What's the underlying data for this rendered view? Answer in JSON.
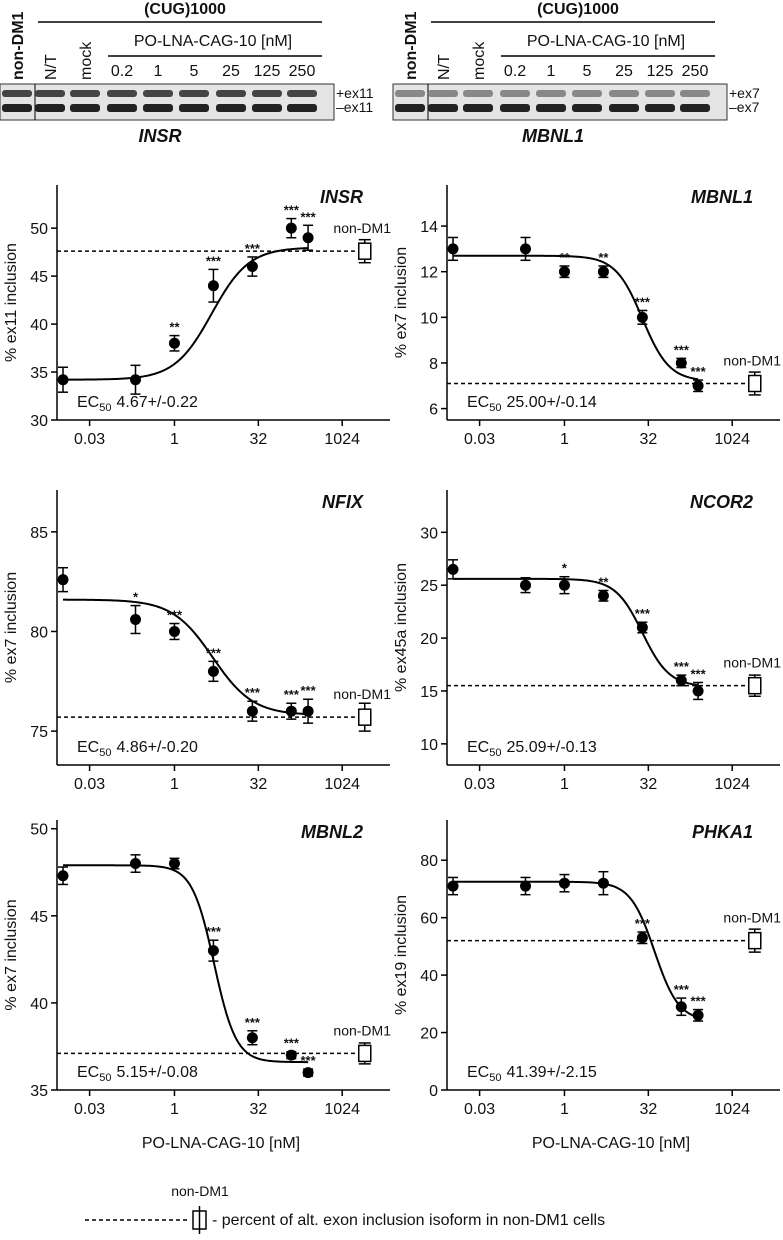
{
  "gels": [
    {
      "control": "non-DM1",
      "group": "(CUG)1000",
      "lanes": [
        "N/T",
        "mock"
      ],
      "treatment": "PO-LNA-CAG-10 [nM]",
      "doses": [
        "0.2",
        "1",
        "5",
        "25",
        "125",
        "250"
      ],
      "bands": [
        "+ex11",
        "–ex11"
      ],
      "gene": "INSR"
    },
    {
      "control": "non-DM1",
      "group": "(CUG)1000",
      "lanes": [
        "N/T",
        "mock"
      ],
      "treatment": "PO-LNA-CAG-10 [nM]",
      "doses": [
        "0.2",
        "1",
        "5",
        "25",
        "125",
        "250"
      ],
      "bands": [
        "+ex7",
        "–ex7"
      ],
      "gene": "MBNL1"
    }
  ],
  "chart_data": [
    {
      "type": "scatter",
      "title": "INSR",
      "ylabel": "% ex11 inclusion",
      "xscale": "log2",
      "xlim": [
        0.0078,
        6000
      ],
      "ylim": [
        30,
        54.5
      ],
      "xticks": [
        0.03,
        1,
        32,
        1024
      ],
      "yticks": [
        30,
        35,
        40,
        45,
        50
      ],
      "x": [
        0.01,
        0.2,
        1,
        5,
        25,
        125,
        250
      ],
      "values": [
        34.2,
        34.2,
        38,
        44,
        46,
        50,
        49
      ],
      "errors": [
        1.3,
        1.5,
        0.8,
        1.7,
        1,
        1,
        1.3
      ],
      "significance": [
        null,
        null,
        "**",
        "***",
        "***",
        "***",
        "***"
      ],
      "reference": {
        "label": "non-DM1",
        "x": 2600,
        "value": 47.6,
        "error": 1.2
      },
      "fit": {
        "bottom": 34.2,
        "top": 48,
        "ec50": 4.67,
        "hill": 1.3
      },
      "ec50_label": "EC",
      "ec50_sub": "50",
      "ec50_text": "4.67+/-0.22"
    },
    {
      "type": "scatter",
      "title": "MBNL1",
      "ylabel": "% ex7 inclusion",
      "xscale": "log2",
      "xlim": [
        0.0078,
        6000
      ],
      "ylim": [
        5.5,
        15.8
      ],
      "xticks": [
        0.03,
        1,
        32,
        1024
      ],
      "yticks": [
        6,
        8,
        10,
        12,
        14
      ],
      "x": [
        0.01,
        0.2,
        1,
        5,
        25,
        125,
        250
      ],
      "values": [
        13,
        13,
        12,
        12,
        10,
        8,
        7
      ],
      "errors": [
        0.5,
        0.5,
        0.25,
        0.25,
        0.3,
        0.2,
        0.25
      ],
      "significance": [
        null,
        null,
        "**",
        "**",
        "***",
        "***",
        "***"
      ],
      "reference": {
        "label": "non-DM1",
        "x": 2600,
        "value": 7.1,
        "error": 0.5
      },
      "fit": {
        "bottom": 7.2,
        "top": 12.7,
        "ec50": 25,
        "hill": -1.8
      },
      "ec50_label": "EC",
      "ec50_sub": "50",
      "ec50_text": "25.00+/-0.14"
    },
    {
      "type": "scatter",
      "title": "NFIX",
      "ylabel": "% ex7 inclusion",
      "xscale": "log2",
      "xlim": [
        0.0078,
        6000
      ],
      "ylim": [
        73.3,
        87.1
      ],
      "xticks": [
        0.03,
        1,
        32,
        1024
      ],
      "yticks": [
        75,
        80,
        85
      ],
      "x": [
        0.01,
        0.2,
        1,
        5,
        25,
        125,
        250
      ],
      "values": [
        82.6,
        80.6,
        80,
        78,
        76,
        76,
        76
      ],
      "errors": [
        0.6,
        0.7,
        0.4,
        0.5,
        0.5,
        0.4,
        0.6
      ],
      "significance": [
        null,
        "*",
        "***",
        "***",
        "***",
        "***",
        "***"
      ],
      "reference": {
        "label": "non-DM1",
        "x": 2600,
        "value": 75.7,
        "error": 0.7
      },
      "fit": {
        "bottom": 75.8,
        "top": 81.6,
        "ec50": 4.86,
        "hill": -1.2
      },
      "ec50_label": "EC",
      "ec50_sub": "50",
      "ec50_text": "4.86+/-0.20"
    },
    {
      "type": "scatter",
      "title": "NCOR2",
      "ylabel": "% ex45a inclusion",
      "xscale": "log2",
      "xlim": [
        0.0078,
        6000
      ],
      "ylim": [
        8,
        34
      ],
      "xticks": [
        0.03,
        1,
        32,
        1024
      ],
      "yticks": [
        10,
        15,
        20,
        25,
        30
      ],
      "x": [
        0.01,
        0.2,
        1,
        5,
        25,
        125,
        250
      ],
      "values": [
        26.5,
        25,
        25,
        24,
        21,
        16,
        15
      ],
      "errors": [
        0.9,
        0.7,
        0.8,
        0.5,
        0.5,
        0.5,
        0.8
      ],
      "significance": [
        null,
        null,
        "*",
        "**",
        "***",
        "***",
        "***"
      ],
      "reference": {
        "label": "non-DM1",
        "x": 2600,
        "value": 15.5,
        "error": 1
      },
      "fit": {
        "bottom": 15.4,
        "top": 25.6,
        "ec50": 25.09,
        "hill": -1.8
      },
      "ec50_label": "EC",
      "ec50_sub": "50",
      "ec50_text": "25.09+/-0.13"
    },
    {
      "type": "scatter",
      "title": "MBNL2",
      "ylabel": "% ex7 inclusion",
      "xlabel": "PO-LNA-CAG-10 [nM]",
      "xscale": "log2",
      "xlim": [
        0.0078,
        6000
      ],
      "ylim": [
        35,
        50.5
      ],
      "xticks": [
        0.03,
        1,
        32,
        1024
      ],
      "yticks": [
        35,
        40,
        45,
        50
      ],
      "x": [
        0.01,
        0.2,
        1,
        5,
        25,
        125,
        250
      ],
      "values": [
        47.3,
        48,
        48,
        43,
        38,
        37,
        36
      ],
      "errors": [
        0.5,
        0.5,
        0.3,
        0.6,
        0.4,
        0.2,
        0.2
      ],
      "significance": [
        null,
        null,
        null,
        "***",
        "***",
        "***",
        "***"
      ],
      "reference": {
        "label": "non-DM1",
        "x": 2600,
        "value": 37.1,
        "error": 0.6
      },
      "fit": {
        "bottom": 36.6,
        "top": 47.9,
        "ec50": 5.15,
        "hill": -2.2
      },
      "ec50_label": "EC",
      "ec50_sub": "50",
      "ec50_text": "5.15+/-0.08"
    },
    {
      "type": "scatter",
      "title": "PHKA1",
      "ylabel": "% ex19 inclusion",
      "xlabel": "PO-LNA-CAG-10 [nM]",
      "xscale": "log2",
      "xlim": [
        0.0078,
        6000
      ],
      "ylim": [
        0,
        94
      ],
      "xticks": [
        0.03,
        1,
        32,
        1024
      ],
      "yticks": [
        0,
        20,
        40,
        60,
        80
      ],
      "x": [
        0.01,
        0.2,
        1,
        5,
        25,
        125,
        250
      ],
      "values": [
        71,
        71,
        72,
        72,
        53,
        29,
        26
      ],
      "errors": [
        3,
        3,
        3,
        4,
        2,
        3,
        2
      ],
      "significance": [
        null,
        null,
        null,
        null,
        "***",
        "***",
        "***"
      ],
      "reference": {
        "label": "non-DM1",
        "x": 2600,
        "value": 52,
        "error": 4
      },
      "fit": {
        "bottom": 24,
        "top": 72.5,
        "ec50": 41.39,
        "hill": -2
      },
      "ec50_label": "EC",
      "ec50_sub": "50",
      "ec50_text": "41.39+/-2.15"
    }
  ],
  "legend": {
    "marker_label": "non-DM1",
    "text": "- percent of alt. exon inclusion isoform in non-DM1 cells"
  }
}
